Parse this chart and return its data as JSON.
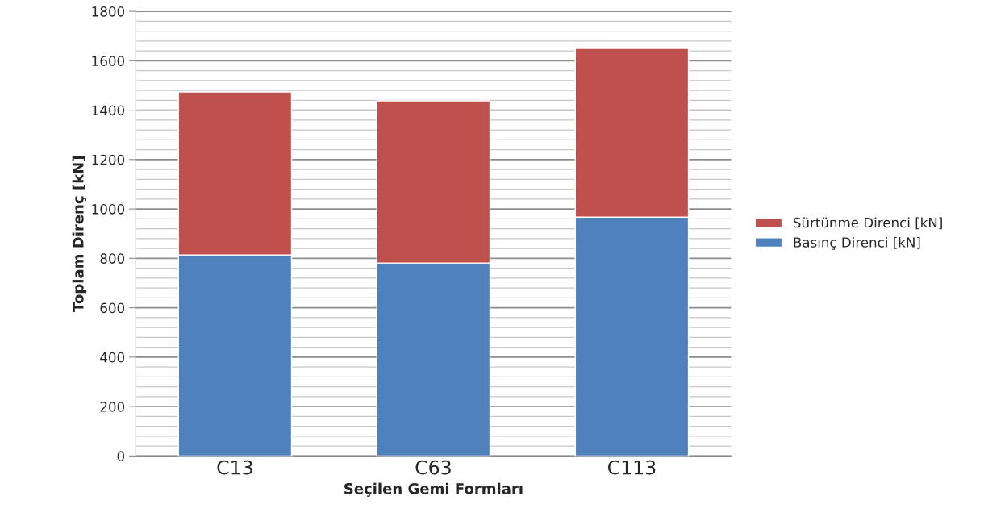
{
  "chart_data": {
    "type": "bar",
    "stacked": true,
    "xlabel": "Seçilen Gemi Formları",
    "ylabel": "Toplam Direnç [kN]",
    "categories": [
      "C13",
      "C63",
      "C113"
    ],
    "series": [
      {
        "name": "Basınç Direnci [kN]",
        "color": "#4f81bd",
        "values": [
          814,
          781,
          967
        ]
      },
      {
        "name": "Sürtünme Direnci [kN]",
        "color": "#c0504d",
        "values": [
          660,
          657,
          683
        ]
      }
    ],
    "ylim": [
      0,
      1800
    ],
    "yticks": [
      0,
      200,
      400,
      600,
      800,
      1000,
      1200,
      1400,
      1600,
      1800
    ],
    "grid": "y",
    "legend": "right"
  }
}
